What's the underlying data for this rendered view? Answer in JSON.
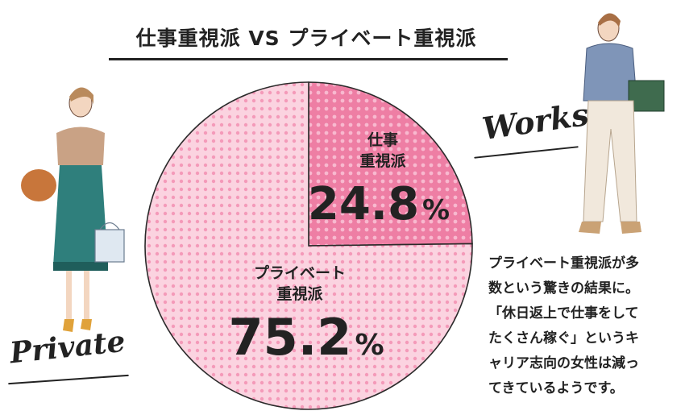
{
  "chart_data": {
    "type": "pie",
    "title": "仕事重視派 VS プライベート重視派",
    "slices": [
      {
        "label_line1": "仕事",
        "label_line2": "重視派",
        "value": 24.8,
        "value_text": "24.8",
        "unit": "%",
        "color": "#ec7aa0"
      },
      {
        "label_line1": "プライベート",
        "label_line2": "重視派",
        "value": 75.2,
        "value_text": "75.2",
        "unit": "%",
        "color": "#fbd0de"
      }
    ],
    "start_angle": "12 o'clock",
    "direction": "clockwise"
  },
  "annotation": {
    "lines": [
      "プライベート重視派が多",
      "数という驚きの結果に。",
      "「休日返上で仕事をして",
      "たくさん稼ぐ」というキ",
      "ャリア志向の女性は減っ",
      "てきているようです。"
    ]
  },
  "decor": {
    "works_label": "Works",
    "private_label": "Private",
    "works_illustration": "walking-businesswoman-illustration",
    "private_illustration": "shopping-woman-illustration"
  }
}
